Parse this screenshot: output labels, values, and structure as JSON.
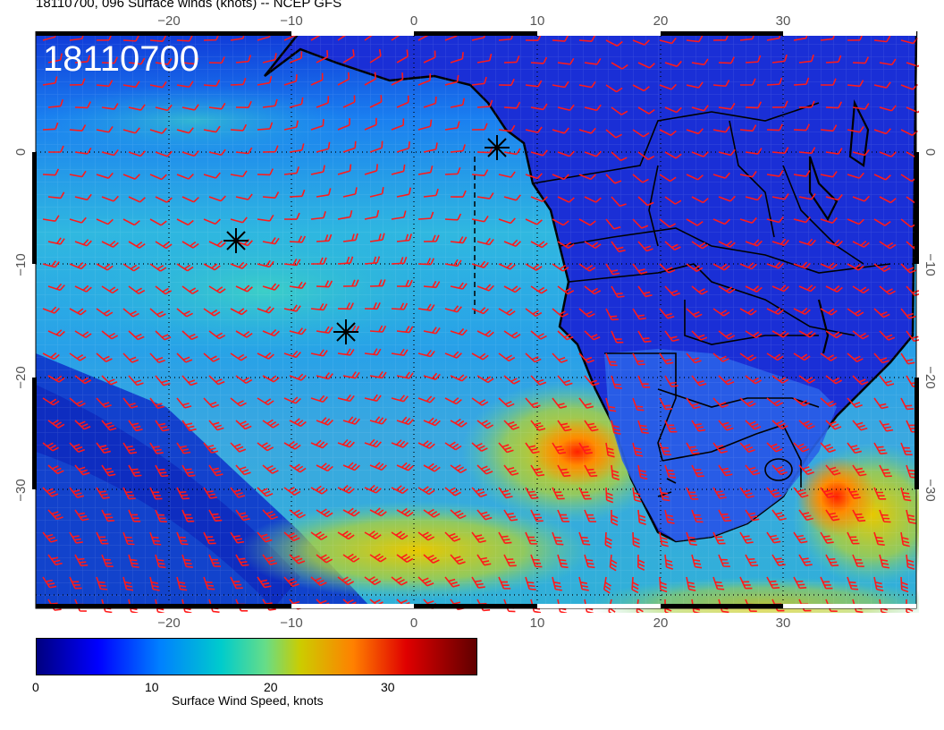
{
  "title": "18110700, 096 Surface winds (knots) -- NCEP GFS",
  "date_stamp": "18110700",
  "lon_top_labels": [
    "−20",
    "−10",
    "0",
    "10",
    "20",
    "30"
  ],
  "lon_bottom_labels": [
    "−20",
    "−10",
    "0",
    "10",
    "20",
    "30"
  ],
  "lat_left_labels": [
    "0",
    "−10",
    "−20",
    "−30"
  ],
  "lat_right_labels": [
    "0",
    "−10",
    "−20",
    "−30"
  ],
  "colorbar": {
    "label": "Surface Wind Speed, knots",
    "ticks": [
      "0",
      "10",
      "20",
      "30"
    ],
    "colors": [
      "#000080",
      "#0000ff",
      "#0080ff",
      "#00cccc",
      "#66dd88",
      "#cccc00",
      "#ff8000",
      "#e00000",
      "#600000"
    ]
  },
  "colors": {
    "barb": "#ff1a1a",
    "ocean_base": "#1a5ff0",
    "land_base": "#1830d8"
  }
}
